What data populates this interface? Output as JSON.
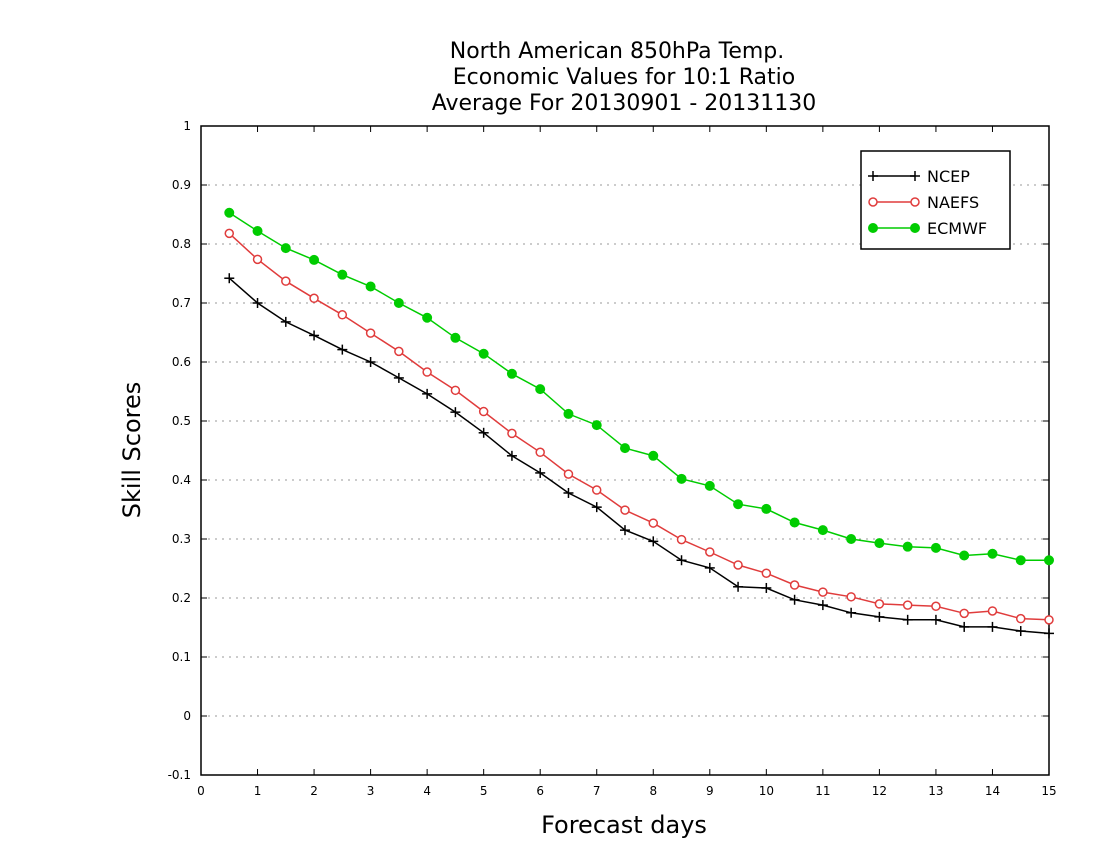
{
  "chart_data": {
    "type": "line",
    "title_lines": [
      "North American 850hPa Temp.",
      "Economic Values for 10:1 Ratio",
      "Average For 20130901 - 20131130"
    ],
    "xlabel": "Forecast days",
    "ylabel": "Skill Scores",
    "xlim": [
      0,
      15
    ],
    "ylim": [
      -0.1,
      1
    ],
    "x_ticks": [
      "0",
      "1",
      "2",
      "3",
      "4",
      "5",
      "6",
      "7",
      "8",
      "9",
      "10",
      "11",
      "12",
      "13",
      "14",
      "15"
    ],
    "y_ticks": [
      "1",
      "0.9",
      "0.8",
      "0.7",
      "0.6",
      "0.5",
      "0.4",
      "0.3",
      "0.2",
      "0.1",
      "0",
      "-0.1"
    ],
    "grid": "horizontal dotted",
    "legend_position": "top-right",
    "x": [
      0.5,
      1,
      1.5,
      2,
      2.5,
      3,
      3.5,
      4,
      4.5,
      5,
      5.5,
      6,
      6.5,
      7,
      7.5,
      8,
      8.5,
      9,
      9.5,
      10,
      10.5,
      11,
      11.5,
      12,
      12.5,
      13,
      13.5,
      14,
      14.5,
      15
    ],
    "series": [
      {
        "name": "NCEP",
        "color": "#000000",
        "marker": "plus",
        "values": [
          0.742,
          0.7,
          0.668,
          0.645,
          0.621,
          0.6,
          0.573,
          0.546,
          0.515,
          0.48,
          0.441,
          0.412,
          0.378,
          0.354,
          0.315,
          0.296,
          0.264,
          0.251,
          0.219,
          0.217,
          0.197,
          0.188,
          0.175,
          0.168,
          0.163,
          0.163,
          0.151,
          0.151,
          0.144,
          0.14
        ]
      },
      {
        "name": "NAEFS",
        "color": "#e03c3c",
        "marker": "open-circle",
        "values": [
          0.818,
          0.774,
          0.737,
          0.708,
          0.68,
          0.649,
          0.618,
          0.583,
          0.552,
          0.516,
          0.479,
          0.447,
          0.41,
          0.383,
          0.349,
          0.327,
          0.299,
          0.278,
          0.256,
          0.242,
          0.222,
          0.21,
          0.202,
          0.19,
          0.188,
          0.186,
          0.174,
          0.178,
          0.165,
          0.163
        ]
      },
      {
        "name": "ECMWF",
        "color": "#00cc00",
        "marker": "filled-circle",
        "values": [
          0.853,
          0.822,
          0.793,
          0.773,
          0.748,
          0.728,
          0.7,
          0.675,
          0.641,
          0.614,
          0.58,
          0.554,
          0.512,
          0.493,
          0.454,
          0.441,
          0.402,
          0.39,
          0.359,
          0.351,
          0.328,
          0.315,
          0.3,
          0.293,
          0.287,
          0.285,
          0.272,
          0.275,
          0.264,
          0.264
        ]
      }
    ]
  }
}
